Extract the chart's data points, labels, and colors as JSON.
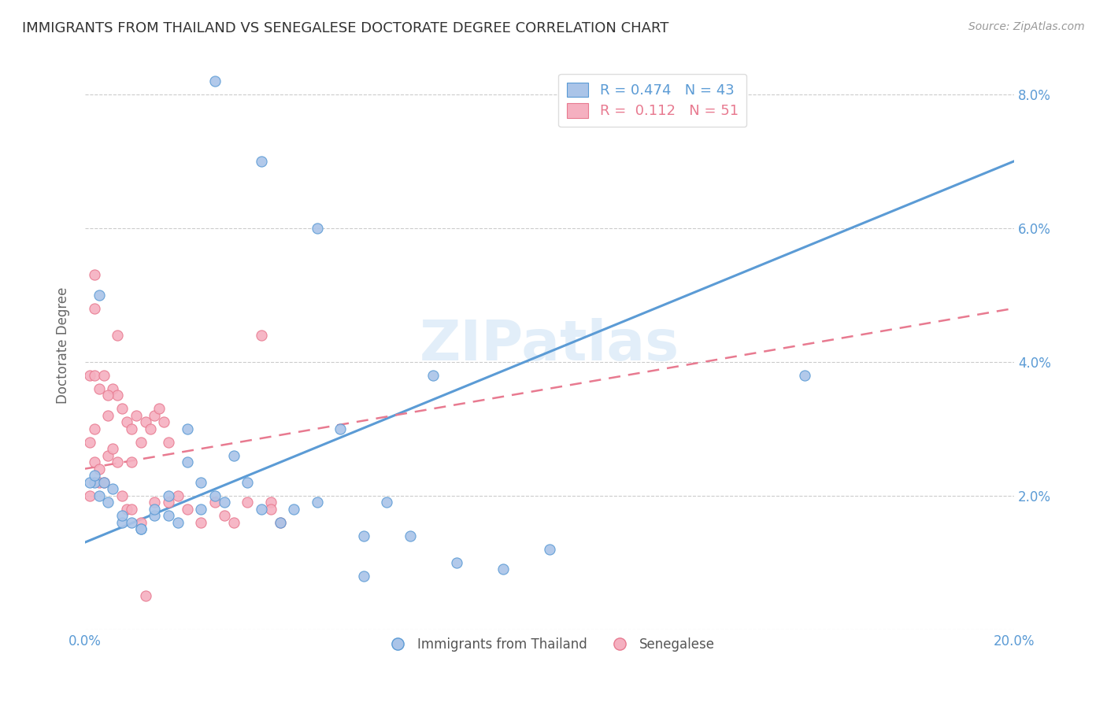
{
  "title": "IMMIGRANTS FROM THAILAND VS SENEGALESE DOCTORATE DEGREE CORRELATION CHART",
  "source": "Source: ZipAtlas.com",
  "ylabel": "Doctorate Degree",
  "xlim": [
    0.0,
    0.2
  ],
  "ylim": [
    0.0,
    0.085
  ],
  "x_ticks": [
    0.0,
    0.05,
    0.1,
    0.15,
    0.2
  ],
  "x_tick_labels": [
    "0.0%",
    "",
    "",
    "",
    "20.0%"
  ],
  "y_ticks": [
    0.0,
    0.02,
    0.04,
    0.06,
    0.08
  ],
  "y_tick_labels": [
    "",
    "2.0%",
    "4.0%",
    "6.0%",
    "8.0%"
  ],
  "legend_R1": "0.474",
  "legend_N1": "43",
  "legend_R2": "0.112",
  "legend_N2": "51",
  "color_blue": "#aac4e8",
  "color_pink": "#f5b0c0",
  "line_blue": "#5b9bd5",
  "line_pink": "#e87a90",
  "watermark": "ZIPatlas",
  "blue_scatter_x": [
    0.028,
    0.038,
    0.003,
    0.002,
    0.001,
    0.005,
    0.003,
    0.008,
    0.012,
    0.015,
    0.018,
    0.022,
    0.025,
    0.028,
    0.032,
    0.002,
    0.004,
    0.006,
    0.008,
    0.01,
    0.012,
    0.015,
    0.018,
    0.02,
    0.022,
    0.025,
    0.03,
    0.035,
    0.038,
    0.042,
    0.045,
    0.05,
    0.055,
    0.06,
    0.065,
    0.07,
    0.075,
    0.08,
    0.09,
    0.1,
    0.155,
    0.06,
    0.05
  ],
  "blue_scatter_y": [
    0.082,
    0.07,
    0.05,
    0.022,
    0.022,
    0.019,
    0.02,
    0.016,
    0.015,
    0.017,
    0.02,
    0.025,
    0.022,
    0.02,
    0.026,
    0.023,
    0.022,
    0.021,
    0.017,
    0.016,
    0.015,
    0.018,
    0.017,
    0.016,
    0.03,
    0.018,
    0.019,
    0.022,
    0.018,
    0.016,
    0.018,
    0.019,
    0.03,
    0.008,
    0.019,
    0.014,
    0.038,
    0.01,
    0.009,
    0.012,
    0.038,
    0.014,
    0.06
  ],
  "pink_scatter_x": [
    0.001,
    0.001,
    0.001,
    0.002,
    0.002,
    0.002,
    0.003,
    0.003,
    0.004,
    0.005,
    0.006,
    0.007,
    0.008,
    0.009,
    0.01,
    0.011,
    0.012,
    0.013,
    0.014,
    0.015,
    0.016,
    0.017,
    0.018,
    0.002,
    0.003,
    0.004,
    0.005,
    0.006,
    0.007,
    0.008,
    0.009,
    0.01,
    0.012,
    0.015,
    0.018,
    0.02,
    0.022,
    0.025,
    0.028,
    0.03,
    0.032,
    0.035,
    0.038,
    0.04,
    0.042,
    0.002,
    0.005,
    0.007,
    0.01,
    0.013,
    0.04
  ],
  "pink_scatter_y": [
    0.038,
    0.028,
    0.02,
    0.048,
    0.038,
    0.03,
    0.036,
    0.022,
    0.038,
    0.032,
    0.036,
    0.035,
    0.033,
    0.031,
    0.03,
    0.032,
    0.028,
    0.031,
    0.03,
    0.032,
    0.033,
    0.031,
    0.028,
    0.025,
    0.024,
    0.022,
    0.026,
    0.027,
    0.025,
    0.02,
    0.018,
    0.018,
    0.016,
    0.019,
    0.019,
    0.02,
    0.018,
    0.016,
    0.019,
    0.017,
    0.016,
    0.019,
    0.044,
    0.019,
    0.016,
    0.053,
    0.035,
    0.044,
    0.025,
    0.005,
    0.018
  ],
  "blue_line_x": [
    0.0,
    0.2
  ],
  "blue_line_y_start": 0.013,
  "blue_line_y_end": 0.07,
  "pink_line_x": [
    0.0,
    0.2
  ],
  "pink_line_y_start": 0.024,
  "pink_line_y_end": 0.048
}
